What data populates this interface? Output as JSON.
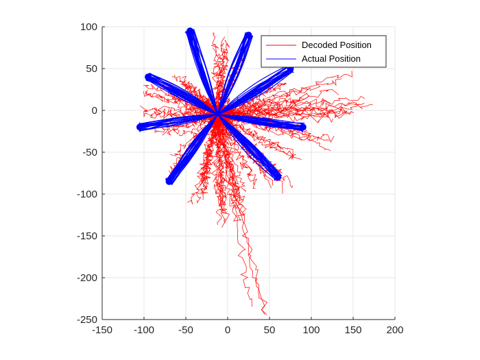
{
  "chart_data": {
    "type": "line",
    "title": "",
    "xlabel": "",
    "ylabel": "",
    "xlim": [
      -150,
      200
    ],
    "ylim": [
      -250,
      100
    ],
    "x_ticks": [
      -150,
      -100,
      -50,
      0,
      50,
      100,
      150,
      200
    ],
    "y_ticks": [
      100,
      50,
      0,
      -50,
      -100,
      -150,
      -200,
      -250
    ],
    "x_tick_labels": [
      "-150",
      "-100",
      "-50",
      "0",
      "50",
      "100",
      "150",
      "200"
    ],
    "y_tick_labels": [
      "100",
      "50",
      "0",
      "-50",
      "-100",
      "-150",
      "-200",
      "-250"
    ],
    "grid": true,
    "legend_position": "top-right",
    "series": [
      {
        "name": "Decoded Position",
        "color": "#ff0000",
        "description": "noisy decoded cursor trajectories, roughly 40 traces radiating from center",
        "approx_endpoints": [
          [
            170,
            3
          ],
          [
            135,
            37
          ],
          [
            125,
            -38
          ],
          [
            95,
            20
          ],
          [
            100,
            -20
          ],
          [
            80,
            -60
          ],
          [
            70,
            -87
          ],
          [
            35,
            -237
          ],
          [
            15,
            -135
          ],
          [
            -10,
            -140
          ],
          [
            -25,
            -100
          ],
          [
            -40,
            -110
          ],
          [
            -60,
            -70
          ],
          [
            -80,
            -25
          ],
          [
            -100,
            0
          ],
          [
            -90,
            20
          ],
          [
            -70,
            30
          ],
          [
            -50,
            40
          ],
          [
            -10,
            80
          ],
          [
            0,
            78
          ],
          [
            20,
            60
          ],
          [
            60,
            30
          ],
          [
            110,
            10
          ],
          [
            140,
            -10
          ],
          [
            150,
            5
          ],
          [
            -5,
            -120
          ],
          [
            5,
            -110
          ],
          [
            -20,
            -80
          ],
          [
            30,
            -90
          ],
          [
            50,
            -80
          ]
        ]
      },
      {
        "name": "Actual Position",
        "color": "#0000ff",
        "description": "center-out reaches to 8 targets and back",
        "targets": [
          [
            -45,
            95
          ],
          [
            25,
            90
          ],
          [
            75,
            50
          ],
          [
            90,
            -20
          ],
          [
            60,
            -80
          ],
          [
            -70,
            -85
          ],
          [
            -105,
            -20
          ],
          [
            -95,
            40
          ]
        ]
      }
    ]
  }
}
